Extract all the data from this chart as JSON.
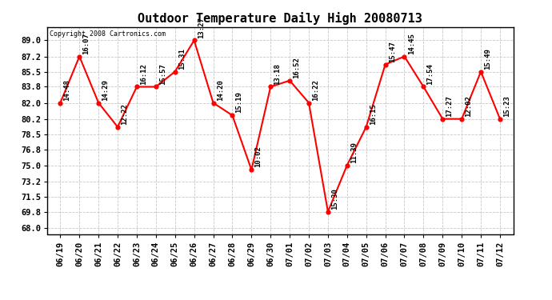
{
  "title": "Outdoor Temperature Daily High 20080713",
  "copyright": "Copyright 2008 Cartronics.com",
  "dates": [
    "06/19",
    "06/20",
    "06/21",
    "06/22",
    "06/23",
    "06/24",
    "06/25",
    "06/26",
    "06/27",
    "06/28",
    "06/29",
    "06/30",
    "07/01",
    "07/02",
    "07/03",
    "07/04",
    "07/05",
    "07/06",
    "07/07",
    "07/08",
    "07/09",
    "07/10",
    "07/11",
    "07/12"
  ],
  "temperatures": [
    82.0,
    87.2,
    82.0,
    79.3,
    83.8,
    83.8,
    85.5,
    89.0,
    82.0,
    80.6,
    74.5,
    83.8,
    84.5,
    82.0,
    69.8,
    75.0,
    79.3,
    86.3,
    87.2,
    83.8,
    80.2,
    80.2,
    85.5,
    80.2
  ],
  "time_labels": [
    "14:48",
    "16:07",
    "14:29",
    "12:22",
    "16:12",
    "15:57",
    "15:31",
    "13:27",
    "14:20",
    "15:19",
    "10:02",
    "13:18",
    "16:52",
    "16:22",
    "15:30",
    "11:39",
    "16:15",
    "15:47",
    "14:45",
    "17:54",
    "17:27",
    "12:02",
    "15:49",
    "15:23"
  ],
  "line_color": "#ff0000",
  "marker_color": "#ff0000",
  "bg_color": "#ffffff",
  "grid_color": "#c8c8c8",
  "yticks": [
    68.0,
    69.8,
    71.5,
    73.2,
    75.0,
    76.8,
    78.5,
    80.2,
    82.0,
    83.8,
    85.5,
    87.2,
    89.0
  ],
  "ylim": [
    67.3,
    90.5
  ],
  "title_fontsize": 11,
  "label_fontsize": 6.5,
  "tick_fontsize": 7.5,
  "fig_width": 6.9,
  "fig_height": 3.75,
  "dpi": 100
}
